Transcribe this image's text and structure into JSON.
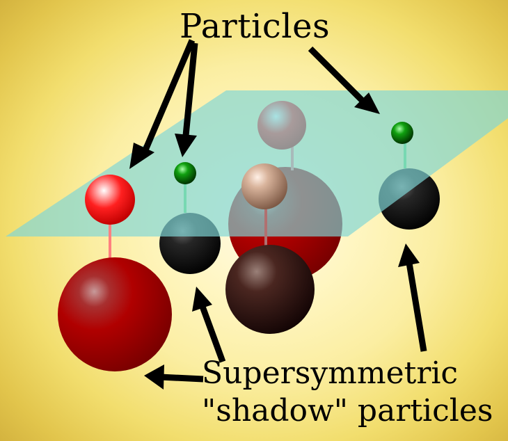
{
  "labels": {
    "particles": "Particles",
    "shadow_line1": "Supersymmetric",
    "shadow_line2": "\"shadow\" particles"
  },
  "colors": {
    "plane": "#7fd6d6",
    "particle_red": "#ff2a2a",
    "shadow_red": "#b30000",
    "particle_green": "#00a400",
    "shadow_black": "#101010",
    "particle_tan": "#c9a489",
    "shadow_brown": "#3a1a14",
    "connector_pink": "#ff8080",
    "connector_green": "#66dd66",
    "arrow": "#000000"
  }
}
